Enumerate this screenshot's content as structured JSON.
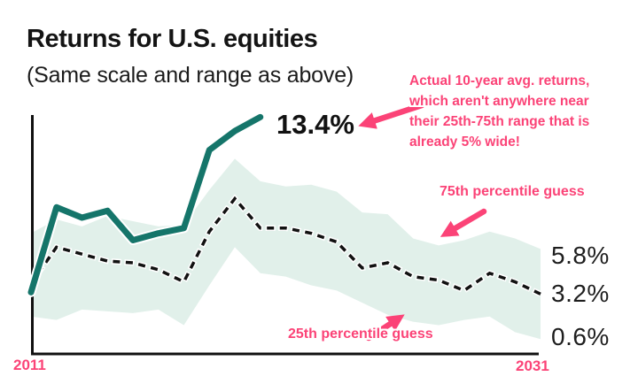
{
  "header": {
    "title": "Returns for U.S. equities",
    "subtitle": "(Same scale and range as above)"
  },
  "colors": {
    "teal": "#15756a",
    "band": "#e1f0ea",
    "pink": "#fb4377",
    "ink": "#141414"
  },
  "annotation": {
    "lines": [
      "Actual 10-year avg. returns,",
      "which aren't anywhere near",
      "their 25th-75th range that is",
      "already 5% wide!"
    ]
  },
  "labels": {
    "actual_end": "13.4%",
    "p75_note": "75th percentile guess",
    "p25_note": "25th percentile guess",
    "p75_end": "5.8%",
    "median_end": "3.2%",
    "p25_end": "0.6%",
    "x_start": "2011",
    "x_end": "2031"
  },
  "chart_data": {
    "type": "line",
    "title": "Returns for U.S. equities",
    "subtitle": "(Same scale and range as above)",
    "grid": false,
    "x_range": [
      2011,
      2031
    ],
    "y_unit": "percent",
    "visible_value_labels": [
      "13.4%",
      "5.8%",
      "3.2%",
      "0.6%"
    ],
    "x": [
      2011,
      2012,
      2013,
      2014,
      2015,
      2016,
      2017,
      2018,
      2019,
      2020,
      2021,
      2022,
      2023,
      2024,
      2025,
      2026,
      2027,
      2028,
      2029,
      2030,
      2031
    ],
    "series": [
      {
        "id": "actual",
        "label": "Actual 10-year avg. returns",
        "style": "solid",
        "color": "#15756a",
        "x": [
          2011,
          2012,
          2013,
          2014,
          2015,
          2016,
          2017,
          2018,
          2019,
          2020
        ],
        "values": [
          3.3,
          8.2,
          7.6,
          8.0,
          6.3,
          6.7,
          7.0,
          11.5,
          12.6,
          13.4
        ],
        "end_label": "13.4%"
      },
      {
        "id": "median_guess",
        "style": "dashed",
        "color": "#111111",
        "values": [
          3.8,
          5.9,
          5.5,
          5.1,
          5.0,
          4.6,
          3.9,
          6.8,
          8.7,
          7.0,
          7.0,
          6.7,
          6.2,
          4.7,
          5.0,
          4.2,
          4.0,
          3.4,
          4.4,
          3.9,
          3.2
        ],
        "end_label": "3.2%"
      },
      {
        "id": "p75_guess",
        "label": "75th percentile guess",
        "style": "band-upper",
        "color": "#e1f0ea",
        "values": [
          6.7,
          7.5,
          7.1,
          7.7,
          7.4,
          7.1,
          7.2,
          9.2,
          11.0,
          9.7,
          9.4,
          9.5,
          9.1,
          7.9,
          7.8,
          6.4,
          6.0,
          6.3,
          6.8,
          6.4,
          5.8
        ],
        "end_label": "5.8%"
      },
      {
        "id": "p25_guess",
        "label": "25th percentile guess",
        "style": "band-lower",
        "color": "#e1f0ea",
        "values": [
          1.9,
          1.7,
          2.3,
          2.2,
          2.1,
          2.3,
          1.4,
          3.7,
          5.9,
          4.4,
          4.2,
          3.7,
          3.4,
          2.7,
          2.0,
          1.6,
          1.4,
          1.7,
          1.9,
          1.0,
          0.6
        ],
        "end_label": "0.6%"
      }
    ]
  }
}
